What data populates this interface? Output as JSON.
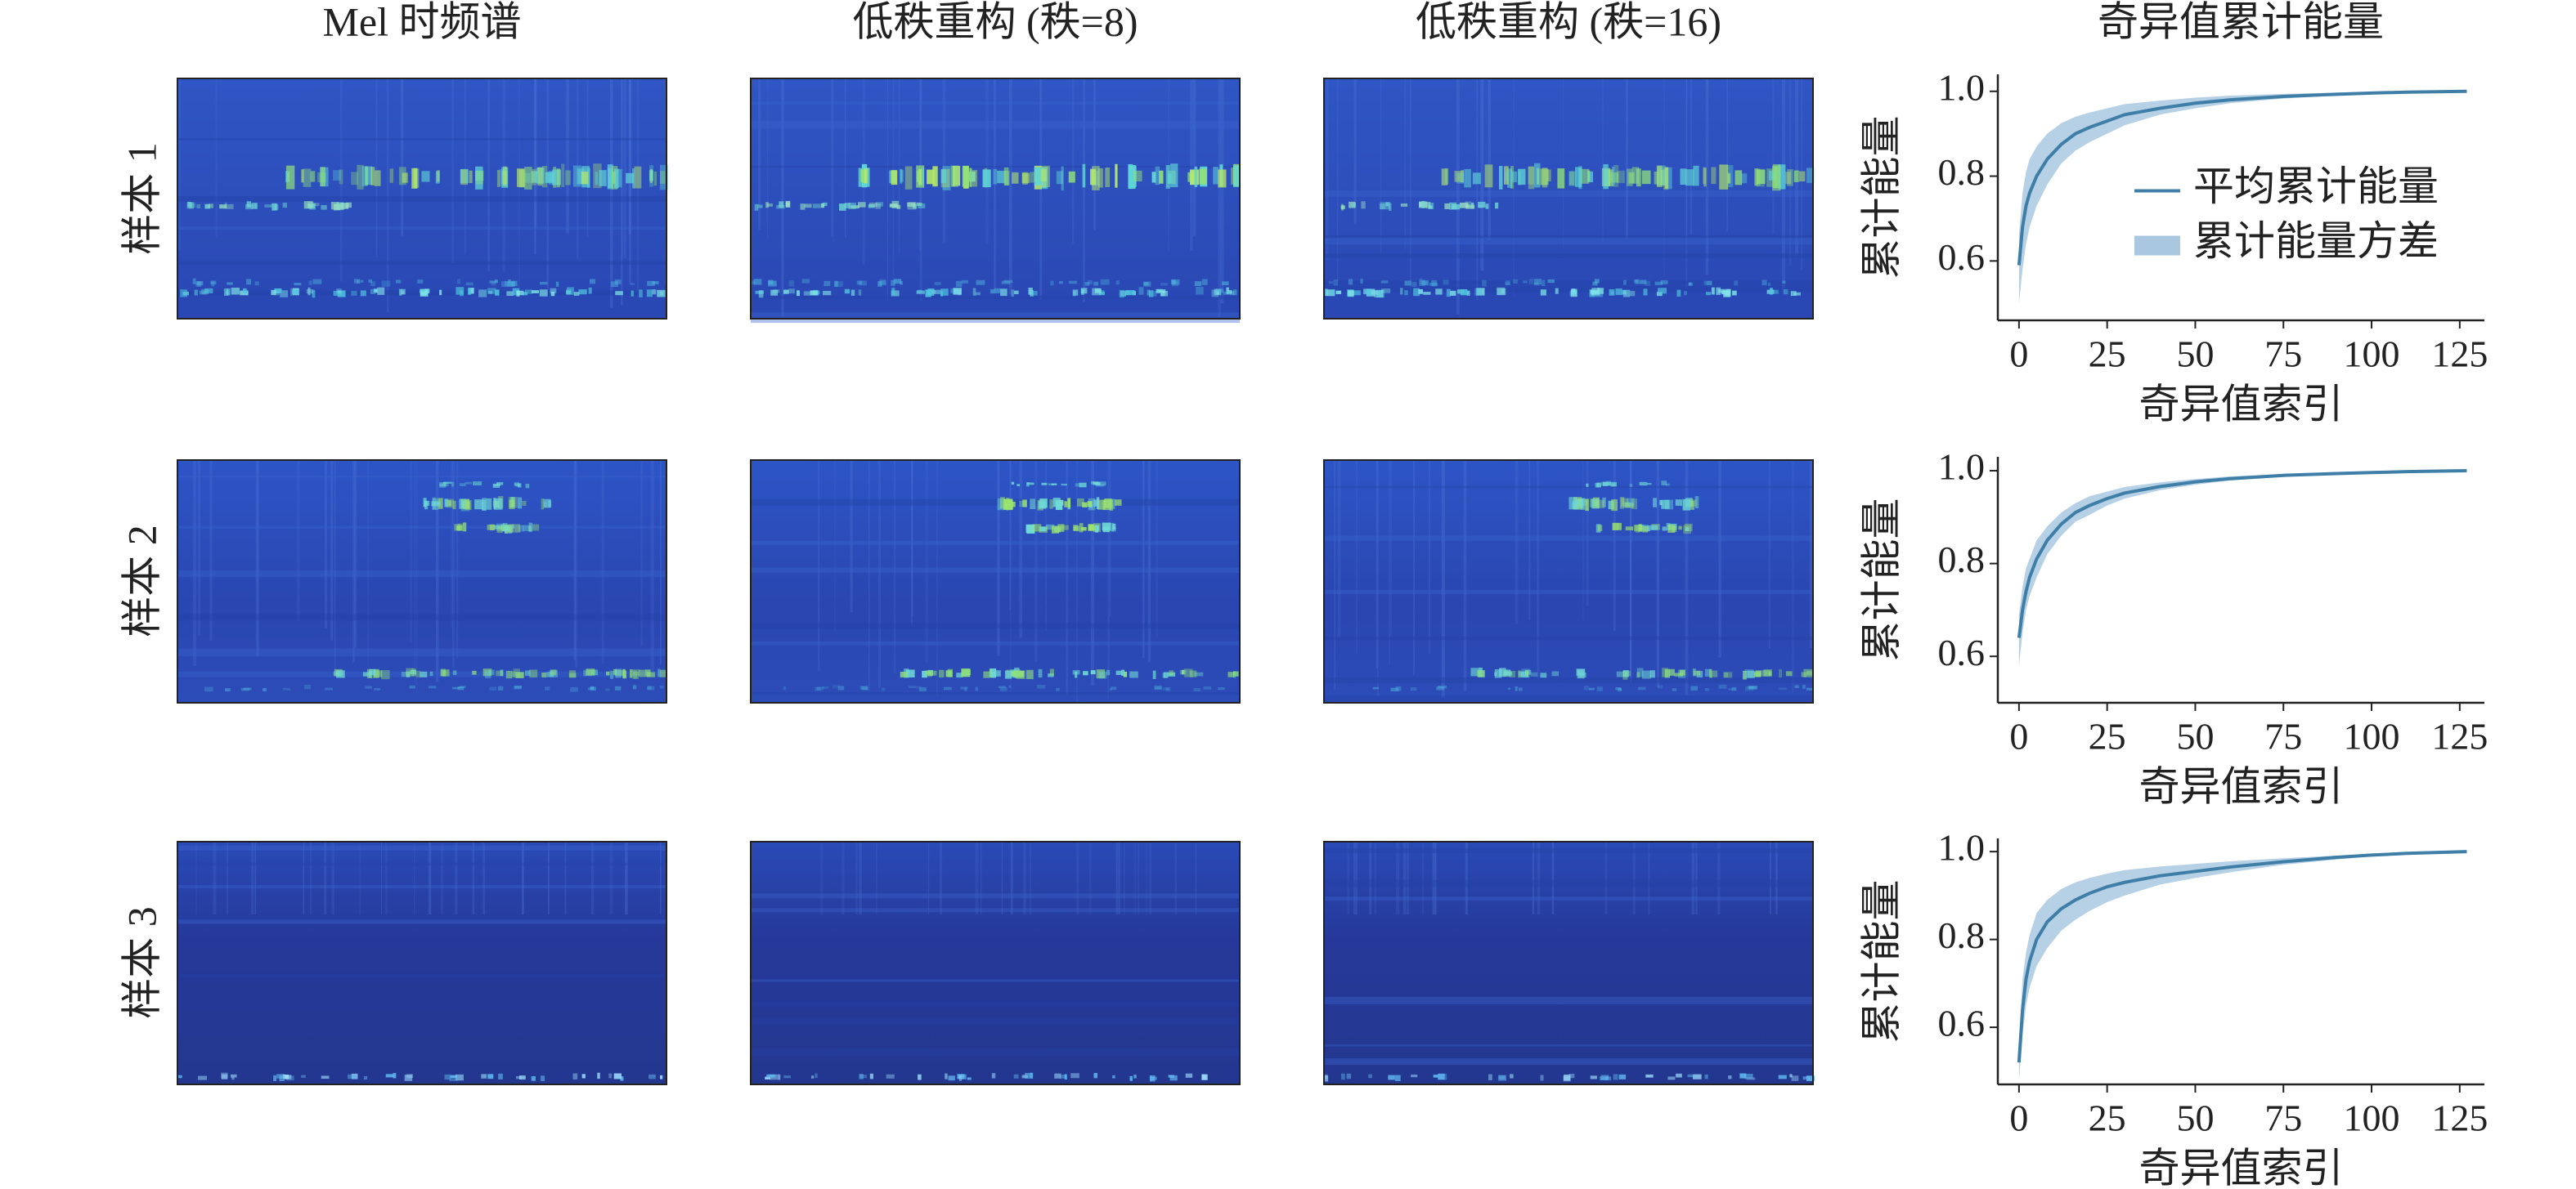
{
  "column_titles": [
    "Mel 时频谱",
    "低秩重构 (秩=8)",
    "低秩重构 (秩=16)",
    "奇异值累计能量"
  ],
  "row_labels": [
    "样本 1",
    "样本 2",
    "样本 3"
  ],
  "chart_data": [
    {
      "type": "line",
      "xlabel": "奇异值索引",
      "ylabel": "累计能量",
      "x": [
        0,
        1,
        2,
        3,
        5,
        8,
        12,
        16,
        20,
        25,
        30,
        40,
        50,
        60,
        75,
        90,
        100,
        110,
        127
      ],
      "xlim": [
        -6,
        132
      ],
      "xticks": [
        0,
        25,
        50,
        75,
        100,
        125
      ],
      "ylim": [
        0.46,
        1.04
      ],
      "yticks": [
        0.6,
        0.8,
        {
          "value": 1,
          "label": "1.0"
        }
      ],
      "legend": "center right",
      "series": [
        {
          "name": "平均累计能量",
          "color": "#3f7ea6",
          "values": [
            0.59,
            0.68,
            0.73,
            0.76,
            0.8,
            0.84,
            0.875,
            0.9,
            0.915,
            0.93,
            0.945,
            0.96,
            0.972,
            0.98,
            0.988,
            0.993,
            0.996,
            0.998,
            1.0
          ]
        },
        {
          "name": "累计能量方差",
          "color": "#a9c8e0",
          "lower": [
            0.5,
            0.58,
            0.64,
            0.68,
            0.73,
            0.78,
            0.83,
            0.86,
            0.88,
            0.9,
            0.92,
            0.945,
            0.96,
            0.972,
            0.983,
            0.99,
            0.994,
            0.997,
            1.0
          ],
          "upper": [
            0.66,
            0.76,
            0.81,
            0.84,
            0.87,
            0.9,
            0.925,
            0.94,
            0.95,
            0.96,
            0.97,
            0.978,
            0.985,
            0.99,
            0.994,
            0.997,
            0.998,
            0.999,
            1.0
          ]
        }
      ]
    },
    {
      "type": "line",
      "xlabel": "奇异值索引",
      "ylabel": "累计能量",
      "x": [
        0,
        1,
        2,
        3,
        5,
        8,
        12,
        16,
        20,
        25,
        30,
        40,
        50,
        60,
        75,
        90,
        100,
        110,
        127
      ],
      "xlim": [
        -6,
        132
      ],
      "xticks": [
        0,
        25,
        50,
        75,
        100,
        125
      ],
      "ylim": [
        0.5,
        1.03
      ],
      "yticks": [
        0.6,
        0.8,
        {
          "value": 1,
          "label": "1.0"
        }
      ],
      "series": [
        {
          "color": "#3f7ea6",
          "values": [
            0.64,
            0.7,
            0.74,
            0.77,
            0.81,
            0.85,
            0.885,
            0.91,
            0.925,
            0.94,
            0.952,
            0.966,
            0.976,
            0.983,
            0.99,
            0.994,
            0.996,
            0.998,
            1.0
          ]
        },
        {
          "color": "#a9c8e0",
          "lower": [
            0.58,
            0.65,
            0.7,
            0.73,
            0.77,
            0.82,
            0.86,
            0.89,
            0.905,
            0.925,
            0.94,
            0.958,
            0.97,
            0.979,
            0.987,
            0.992,
            0.995,
            0.997,
            1.0
          ],
          "upper": [
            0.69,
            0.75,
            0.79,
            0.81,
            0.85,
            0.88,
            0.91,
            0.93,
            0.945,
            0.955,
            0.965,
            0.975,
            0.982,
            0.988,
            0.993,
            0.996,
            0.998,
            0.999,
            1.0
          ]
        }
      ]
    },
    {
      "type": "line",
      "xlabel": "奇异值索引",
      "ylabel": "累计能量",
      "x": [
        0,
        1,
        2,
        3,
        5,
        8,
        12,
        16,
        20,
        25,
        30,
        40,
        50,
        60,
        75,
        90,
        100,
        110,
        127
      ],
      "xlim": [
        -6,
        132
      ],
      "xticks": [
        0,
        25,
        50,
        75,
        100,
        125
      ],
      "ylim": [
        0.47,
        1.03
      ],
      "yticks": [
        0.6,
        0.8,
        {
          "value": 1,
          "label": "1.0"
        }
      ],
      "series": [
        {
          "color": "#3f7ea6",
          "values": [
            0.52,
            0.64,
            0.71,
            0.75,
            0.8,
            0.84,
            0.87,
            0.89,
            0.905,
            0.92,
            0.93,
            0.945,
            0.955,
            0.965,
            0.977,
            0.987,
            0.992,
            0.996,
            1.0
          ]
        },
        {
          "color": "#a9c8e0",
          "lower": [
            0.48,
            0.58,
            0.65,
            0.69,
            0.74,
            0.78,
            0.82,
            0.845,
            0.865,
            0.885,
            0.9,
            0.925,
            0.94,
            0.953,
            0.97,
            0.982,
            0.989,
            0.994,
            1.0
          ],
          "upper": [
            0.56,
            0.71,
            0.77,
            0.81,
            0.86,
            0.89,
            0.915,
            0.93,
            0.94,
            0.95,
            0.958,
            0.966,
            0.972,
            0.978,
            0.985,
            0.991,
            0.995,
            0.998,
            1.0
          ]
        }
      ]
    }
  ]
}
